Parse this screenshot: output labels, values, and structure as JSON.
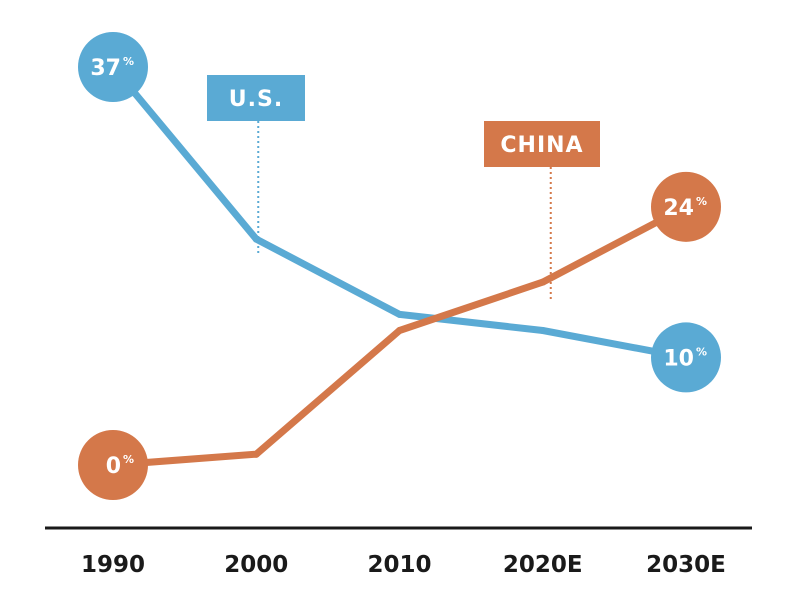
{
  "chart_data": {
    "type": "line",
    "title": "",
    "xlabel": "",
    "ylabel": "",
    "categories": [
      "1990",
      "2000",
      "2010",
      "2020E",
      "2030E"
    ],
    "ylim": [
      0,
      37
    ],
    "grid": false,
    "series": [
      {
        "name": "U.S.",
        "color": "#5aaad4",
        "values": [
          37,
          21,
          14,
          12.5,
          10
        ],
        "start_label": "37",
        "end_label": "10",
        "unit": "%",
        "tag_anchor_index": 1
      },
      {
        "name": "CHINA",
        "color": "#d4784a",
        "values": [
          0,
          1,
          12.5,
          17,
          24
        ],
        "start_label": "0",
        "end_label": "24",
        "unit": "%",
        "tag_anchor_index": 3
      }
    ]
  }
}
